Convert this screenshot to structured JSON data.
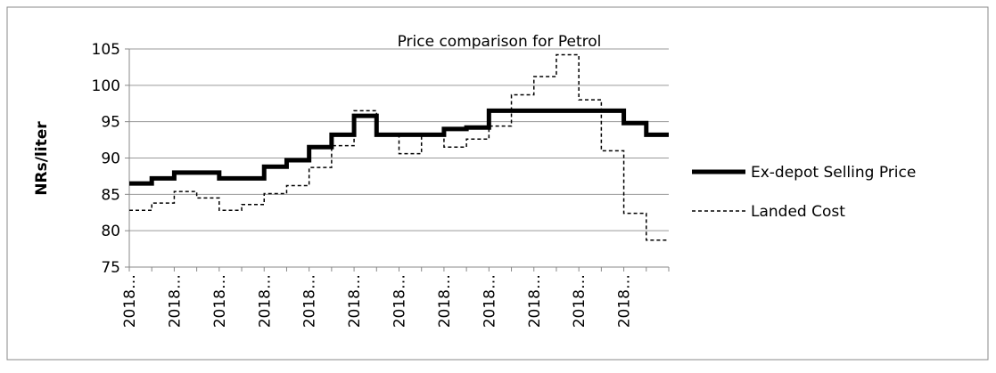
{
  "chart_data": {
    "type": "step-line",
    "title": "Price comparison for Petrol",
    "y_label": "NRs/liter",
    "categories": [
      "2018…",
      null,
      "2018…",
      null,
      "2018…",
      null,
      "2018…",
      null,
      "2018…",
      null,
      "2018…",
      null,
      "2018…",
      null,
      "2018…",
      null,
      "2018…",
      null,
      "2018…",
      null,
      "2018…",
      null,
      "2018…",
      null
    ],
    "series": [
      {
        "name": "Ex-depot Selling Price",
        "color": "#000000",
        "style": "solid",
        "values": [
          86.5,
          87.2,
          88.0,
          88.0,
          87.2,
          87.2,
          88.8,
          89.7,
          91.5,
          93.2,
          95.8,
          93.2,
          93.2,
          93.2,
          94.0,
          94.2,
          96.5,
          96.5,
          96.5,
          96.5,
          96.5,
          96.5,
          94.8,
          93.2
        ]
      },
      {
        "name": "Landed Cost",
        "color": "#000000",
        "style": "dashed",
        "values": [
          82.8,
          83.8,
          85.4,
          84.5,
          82.8,
          83.6,
          85.1,
          86.2,
          88.7,
          91.7,
          96.5,
          93.2,
          90.6,
          93.2,
          91.5,
          92.6,
          94.4,
          98.7,
          101.2,
          104.2,
          98.0,
          91.0,
          82.4,
          78.7
        ]
      }
    ],
    "ylim": [
      75,
      105
    ],
    "yticks": [
      75,
      80,
      85,
      90,
      95,
      100,
      105
    ],
    "grid": true,
    "legend": "right"
  }
}
